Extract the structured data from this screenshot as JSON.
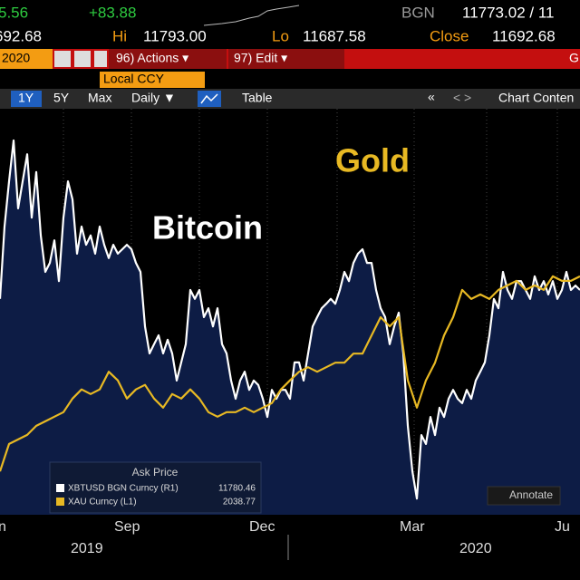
{
  "header": {
    "last_change": "5.56",
    "net_change": "+83.88",
    "source": "BGN",
    "bid_ask": "11773.02 / 11",
    "open": "692.68",
    "high_label": "Hi",
    "high": "11793.00",
    "low_label": "Lo",
    "low": "11687.58",
    "close_label": "Close",
    "close": "11692.68"
  },
  "toolbar": {
    "date": "2020",
    "actions": "96) Actions ▾",
    "edit": "97) Edit ▾",
    "more": "G",
    "currency": "Local CCY",
    "periods": [
      "1Y",
      "5Y",
      "Max"
    ],
    "frequency": "Daily ▼",
    "table": "Table",
    "collapse": "«",
    "chart_content": "Chart Conten"
  },
  "chart_data": {
    "type": "line",
    "annotations": [
      "Bitcoin",
      "Gold"
    ],
    "legend_title": "Ask Price",
    "x_labels": [
      "n",
      "Sep",
      "Dec",
      "Mar",
      "Ju"
    ],
    "years": [
      "2019",
      "2020"
    ],
    "annotate": "Annotate",
    "ylim": [
      1200,
      2000
    ],
    "y2lim": [
      4000,
      14000
    ],
    "series": [
      {
        "name": "XBTUSD BGN Curncy (R1)",
        "color": "#ffffff",
        "axis": "y2",
        "last_value": 11780.46,
        "values": [
          9340,
          11130,
          12250,
          13260,
          11580,
          12250,
          12920,
          11350,
          12480,
          10910,
          10010,
          10230,
          10790,
          9780,
          11350,
          12250,
          11800,
          10460,
          11130,
          10680,
          10910,
          10460,
          11130,
          10680,
          10350,
          10680,
          10460,
          10570,
          10680,
          10570,
          10230,
          10010,
          8660,
          7990,
          8220,
          8440,
          7990,
          8330,
          7990,
          7320,
          7770,
          8220,
          9560,
          9340,
          9560,
          8890,
          9110,
          8660,
          9110,
          8220,
          7990,
          7320,
          6870,
          7320,
          7540,
          7090,
          7320,
          7210,
          6870,
          6420,
          7090,
          6870,
          7090,
          7090,
          6870,
          7770,
          7770,
          7320,
          7990,
          8660,
          8890,
          9110,
          9220,
          9340,
          9220,
          9560,
          10010,
          9780,
          10230,
          10460,
          10570,
          10230,
          10230,
          9560,
          9110,
          8890,
          8220,
          8660,
          9000,
          7990,
          6200,
          5080,
          4400,
          5970,
          5750,
          6420,
          5970,
          6650,
          6420,
          6870,
          7090,
          6870,
          6760,
          7090,
          6870,
          7320,
          7540,
          7770,
          8440,
          9340,
          9110,
          10010,
          9560,
          9340,
          9780,
          9780,
          9560,
          9340,
          9900,
          9560,
          9780,
          9450,
          9780,
          9340,
          9560,
          10010,
          9560,
          9670,
          9560
        ]
      },
      {
        "name": "XAU Curncy (L1)",
        "color": "#e8b923",
        "last_value": 2038.77,
        "values": [
          1286,
          1340,
          1349,
          1358,
          1376,
          1385,
          1394,
          1403,
          1430,
          1448,
          1439,
          1448,
          1483,
          1466,
          1430,
          1448,
          1457,
          1430,
          1412,
          1439,
          1430,
          1448,
          1430,
          1403,
          1394,
          1403,
          1403,
          1412,
          1403,
          1412,
          1421,
          1448,
          1466,
          1483,
          1492,
          1483,
          1492,
          1501,
          1501,
          1519,
          1519,
          1555,
          1591,
          1573,
          1591,
          1466,
          1412,
          1466,
          1501,
          1555,
          1591,
          1645,
          1627,
          1636,
          1627,
          1645,
          1654,
          1663,
          1645,
          1654,
          1645,
          1672,
          1663,
          1663,
          1672
        ]
      }
    ]
  }
}
